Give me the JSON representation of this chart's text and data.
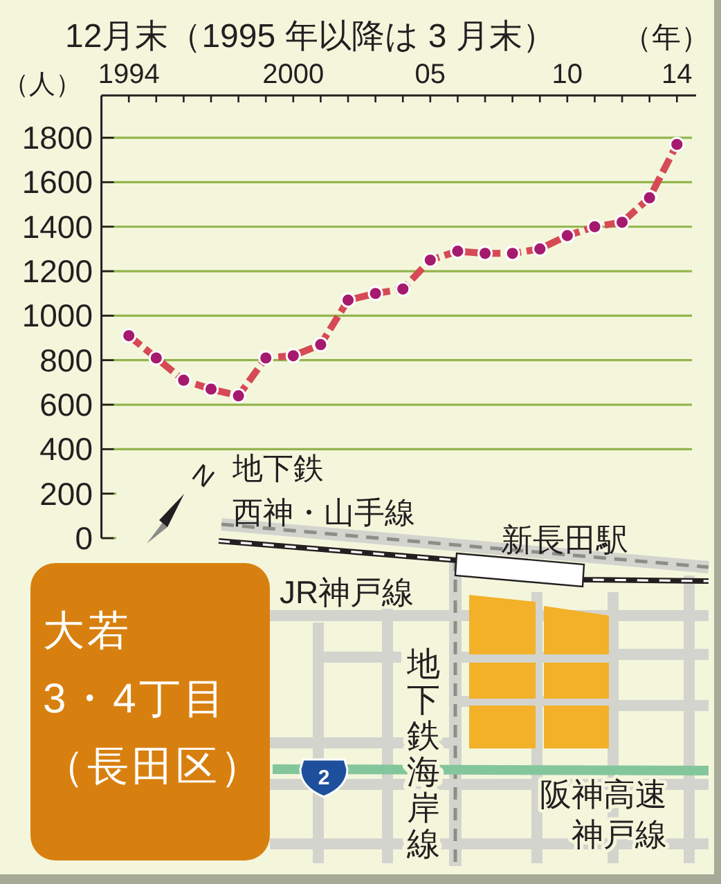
{
  "chart_data": {
    "type": "line",
    "title": "12月末（1995 年以降は 3 月末）",
    "xlabel": "（年）",
    "ylabel": "（人）",
    "x": [
      1994,
      1995,
      1996,
      1997,
      1998,
      1999,
      2000,
      2001,
      2002,
      2003,
      2004,
      2005,
      2006,
      2007,
      2008,
      2009,
      2010,
      2011,
      2012,
      2013,
      2014
    ],
    "series": [
      {
        "color": "#d64a55",
        "colors": [
          "#a61a6e",
          "#a61a6e",
          "#a61a6e",
          "#a61a6e",
          "#a61a6e",
          "#a61a6e",
          "#a61a6e",
          "#a61a6e",
          "#a61a6e",
          "#a61a6e",
          "#a61a6e",
          "#a61a6e",
          "#a61a6e",
          "#a61a6e",
          "#a61a6e",
          "#a61a6e",
          "#a61a6e",
          "#a61a6e",
          "#a61a6e",
          "#a61a6e",
          "#a61a6e"
        ],
        "values": [
          910,
          810,
          710,
          670,
          640,
          810,
          820,
          870,
          1070,
          1100,
          1120,
          1250,
          1290,
          1280,
          1280,
          1300,
          1360,
          1400,
          1420,
          1530,
          1770
        ]
      }
    ],
    "xlim": [
      1993,
      2014.7
    ],
    "xticks": [
      1994,
      {
        "value": 1995,
        "label": null
      },
      {
        "value": 1996,
        "label": null
      },
      {
        "value": 1997,
        "label": null
      },
      {
        "value": 1998,
        "label": null
      },
      {
        "value": 1999,
        "label": null
      },
      2000,
      {
        "value": 2001,
        "label": null
      },
      {
        "value": 2002,
        "label": null
      },
      {
        "value": 2003,
        "label": null
      },
      {
        "value": 2004,
        "label": null
      },
      {
        "value": 2005,
        "label": "05"
      },
      {
        "value": 2006,
        "label": null
      },
      {
        "value": 2007,
        "label": null
      },
      {
        "value": 2008,
        "label": null
      },
      {
        "value": 2009,
        "label": null
      },
      {
        "value": 2010,
        "label": "10"
      },
      {
        "value": 2011,
        "label": null
      },
      {
        "value": 2012,
        "label": null
      },
      {
        "value": 2013,
        "label": null
      },
      {
        "value": 2014,
        "label": "14"
      }
    ],
    "ylim": [
      0,
      1990
    ],
    "yticks": [
      0,
      200,
      400,
      600,
      800,
      1000,
      1200,
      1400,
      1600,
      1800
    ],
    "grid": "y",
    "marker": "circle",
    "line_style": "dashed",
    "annotations": [
      "地下鉄西神・山手線",
      "新長田駅",
      "JR神戸線",
      "地下鉄海岸線",
      "阪神高速神戸線",
      "大若3・4丁目（長田区）",
      "2",
      "N"
    ]
  }
}
